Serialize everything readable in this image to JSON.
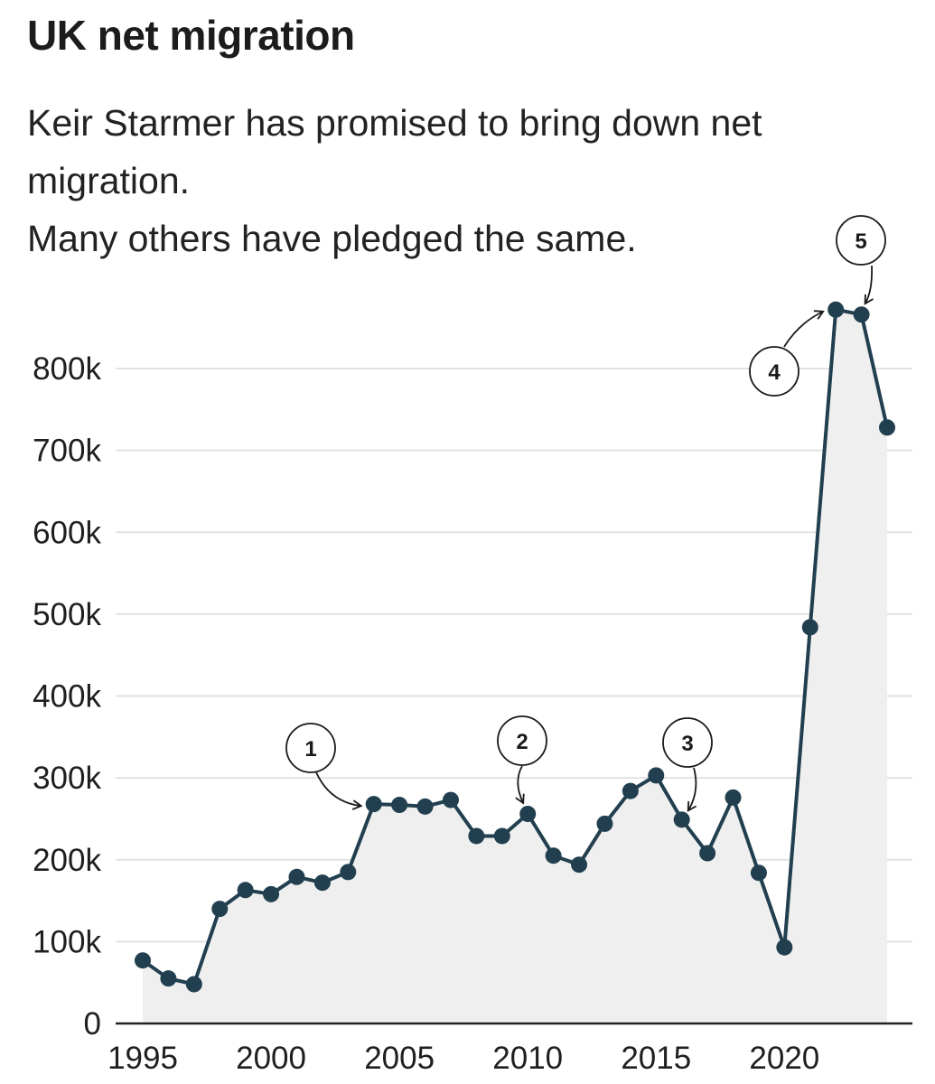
{
  "title": "UK net migration",
  "subtitle": [
    "Keir Starmer has promised to bring down net",
    "migration.",
    "Many others have pledged the same."
  ],
  "colors": {
    "line": "#213f4f",
    "area": "#efefef",
    "grid": "#e2e2e2",
    "axis": "#222222"
  },
  "chart_data": {
    "type": "area",
    "title": "UK net migration",
    "xlabel": "",
    "ylabel": "",
    "x": [
      1995,
      1996,
      1997,
      1998,
      1999,
      2000,
      2001,
      2002,
      2003,
      2004,
      2005,
      2006,
      2007,
      2008,
      2009,
      2010,
      2011,
      2012,
      2013,
      2014,
      2015,
      2016,
      2017,
      2018,
      2019,
      2020,
      2021,
      2022,
      2023,
      2024
    ],
    "series": [
      {
        "values": [
          77000,
          55000,
          48000,
          140000,
          163000,
          158000,
          179000,
          172000,
          185000,
          268000,
          267000,
          265000,
          273000,
          229000,
          229000,
          256000,
          205000,
          194000,
          244000,
          284000,
          303000,
          249000,
          208000,
          276000,
          184000,
          93000,
          484000,
          872000,
          866000,
          728000
        ]
      }
    ],
    "xlim": [
      1995,
      2024
    ],
    "ylim": [
      0,
      800000
    ],
    "x_ticks": [
      1995,
      2000,
      2005,
      2010,
      2015,
      2020
    ],
    "x_tick_labels": [
      "1995",
      "2000",
      "2005",
      "2010",
      "2015",
      "2020"
    ],
    "y_ticks": [
      0,
      100000,
      200000,
      300000,
      400000,
      500000,
      600000,
      700000,
      800000
    ],
    "y_tick_labels": [
      "0",
      "100k",
      "200k",
      "300k",
      "400k",
      "500k",
      "600k",
      "700k",
      "800k"
    ],
    "grid": true,
    "markers": true,
    "annotations": [
      {
        "label": "1",
        "x": 2004
      },
      {
        "label": "2",
        "x": 2010
      },
      {
        "label": "3",
        "x": 2016
      },
      {
        "label": "4",
        "x": 2022
      },
      {
        "label": "5",
        "x": 2023
      }
    ]
  }
}
